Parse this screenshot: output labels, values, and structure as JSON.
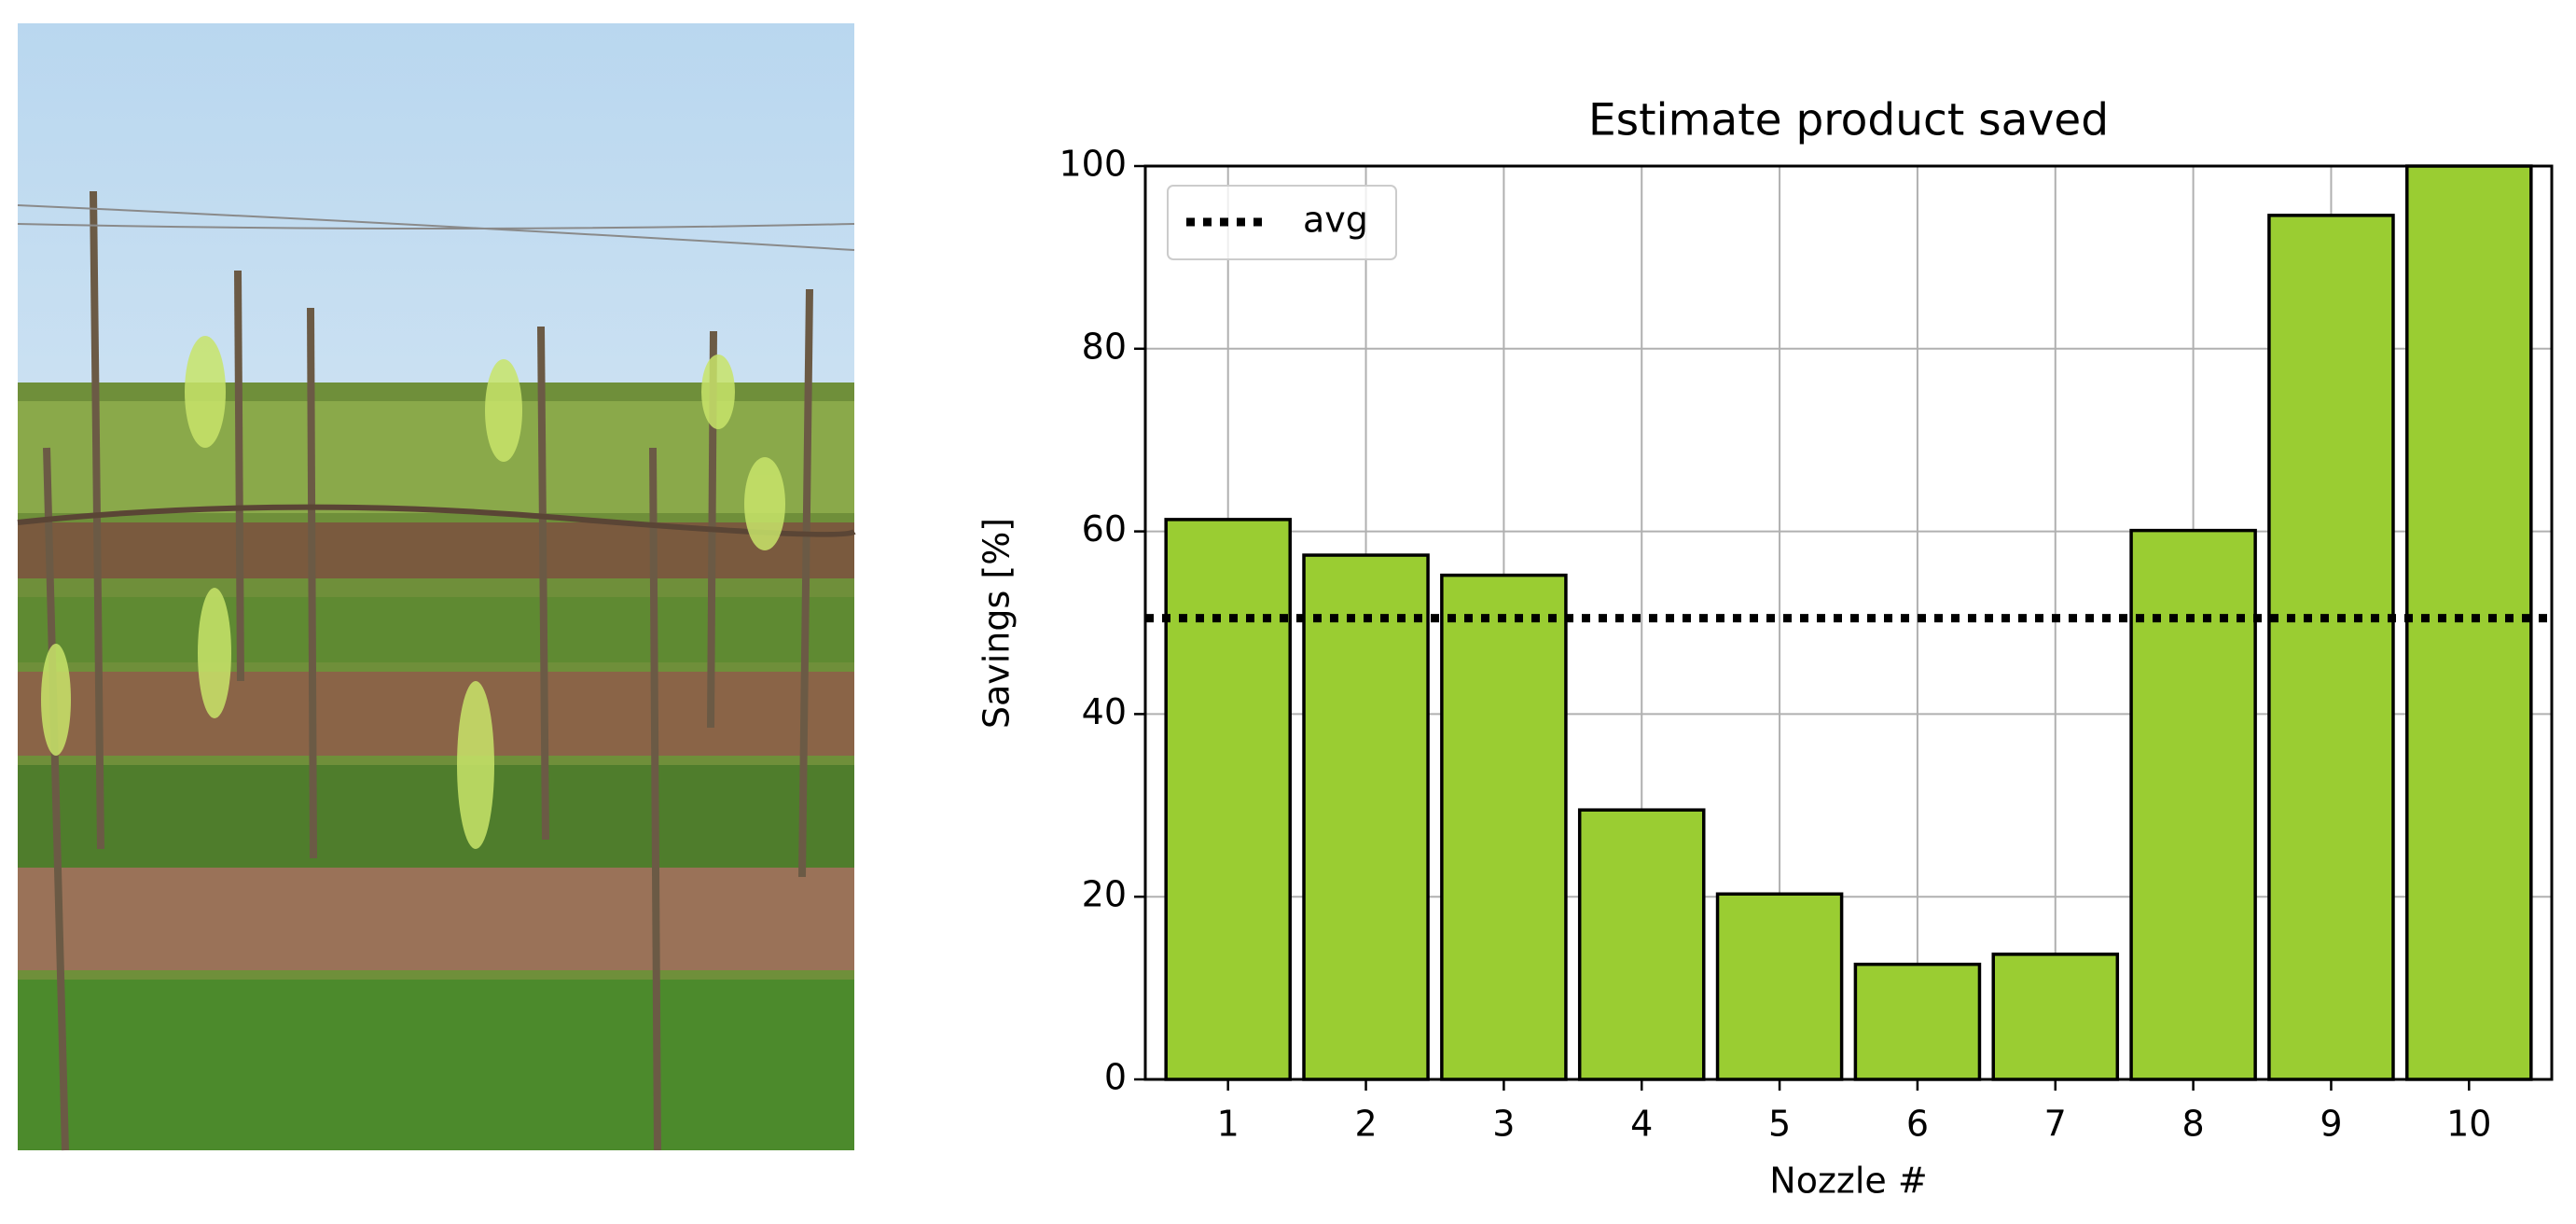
{
  "chart_data": {
    "type": "bar",
    "title": "Estimate product saved",
    "xlabel": "Nozzle #",
    "ylabel": "Savings [%]",
    "x": [
      1,
      2,
      3,
      4,
      5,
      6,
      7,
      8,
      9,
      10
    ],
    "values": [
      61.3,
      57.4,
      55.2,
      29.5,
      20.3,
      12.6,
      13.7,
      60.1,
      94.6,
      100
    ],
    "color": "#9acd32",
    "avg": {
      "name": "avg",
      "value": 50.5
    },
    "xlim": [
      0.4,
      10.6
    ],
    "xticks": [
      1,
      2,
      3,
      4,
      5,
      6,
      7,
      8,
      9,
      10
    ],
    "ylim": [
      0,
      100
    ],
    "yticks": [
      0,
      20,
      40,
      60,
      80,
      100
    ],
    "grid": true,
    "legend": "upper-left"
  }
}
